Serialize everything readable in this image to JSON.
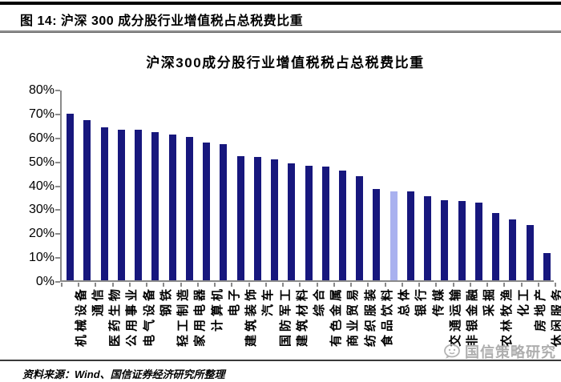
{
  "figure_header": {
    "title": "图 14: 沪深 300 成分股行业增值税占总税费比重"
  },
  "chart_data": {
    "type": "bar",
    "title": "沪深300成分股行业增值税税占总税费比重",
    "categories": [
      "机械设备",
      "通信",
      "医药生物",
      "公用事业",
      "电气设备",
      "钢铁",
      "轻工制造",
      "家用电器",
      "计算机",
      "电子",
      "建筑装饰",
      "汽车",
      "国防军工",
      "建筑材料",
      "综合",
      "有色金属",
      "商业贸易",
      "纺织服装",
      "食品饮料",
      "总体",
      "银行",
      "传媒",
      "交通运输",
      "非银金融",
      "采掘",
      "农林牧渔",
      "化工",
      "房地产",
      "休闲服务"
    ],
    "values": [
      69.5,
      67,
      64,
      63,
      63,
      62,
      61,
      60,
      57.5,
      57,
      52,
      51.5,
      50.5,
      49,
      48,
      47.5,
      46,
      43.5,
      38,
      37,
      37,
      35,
      33.5,
      33,
      32.5,
      28,
      25.5,
      23,
      11.5
    ],
    "unit": "%",
    "highlight_category": "总体",
    "highlight_index": 19,
    "ylim": [
      0,
      80
    ],
    "y_tick_step": 10,
    "y_tick_labels": [
      "0%",
      "10%",
      "20%",
      "30%",
      "40%",
      "50%",
      "60%",
      "70%",
      "80%"
    ],
    "bar_color": "#17177d",
    "highlight_color": "#a9b1ef",
    "axis_color": "#8a8a8a",
    "grid": "off",
    "legend": "none",
    "xlabel": "",
    "ylabel": ""
  },
  "watermark": {
    "text": "国信策略研究",
    "icon": "chat-bubble-face-icon"
  },
  "footer": {
    "source_text": "资料来源：Wind、国信证券经济研究所整理"
  }
}
